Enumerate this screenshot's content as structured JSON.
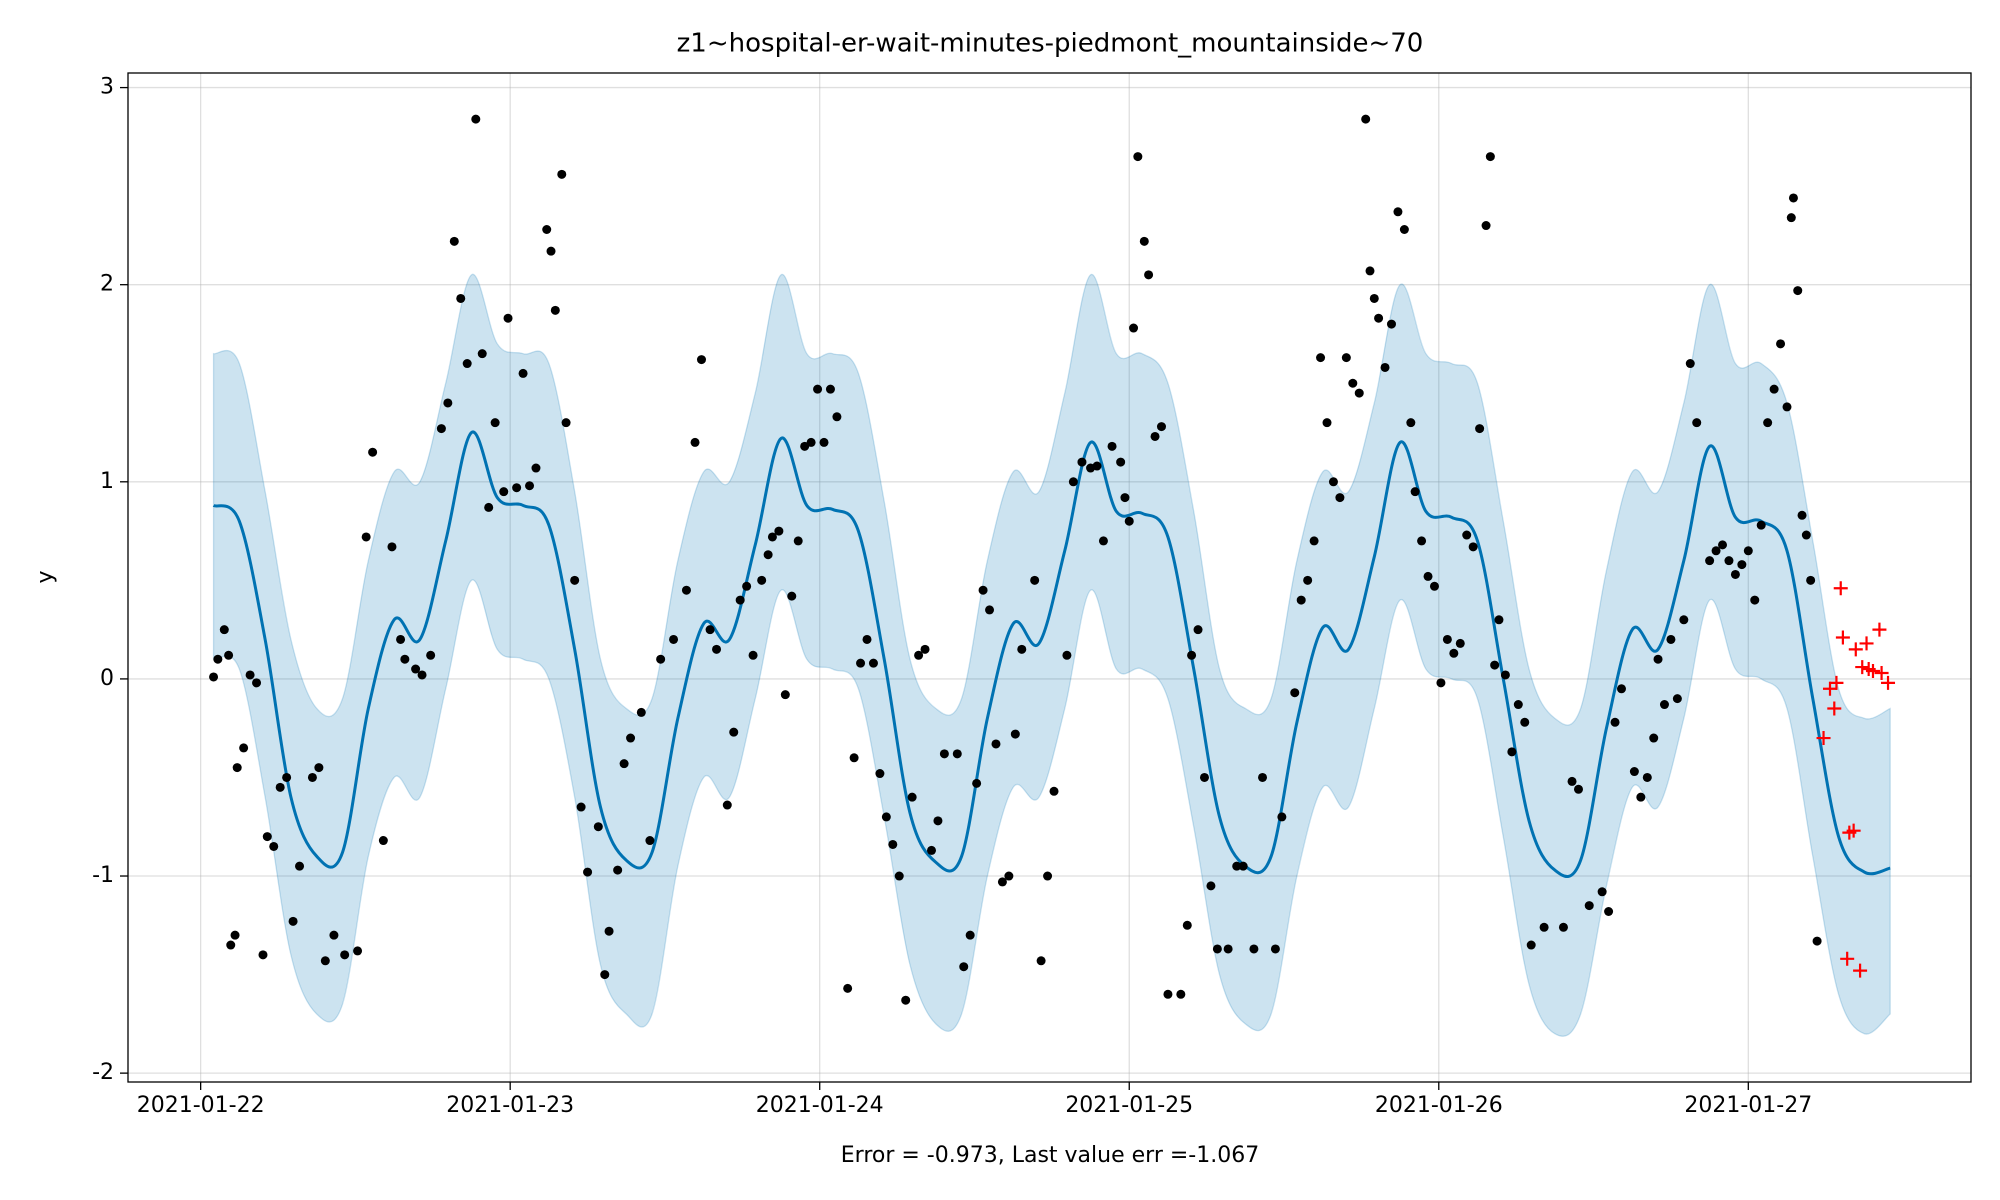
{
  "chart_data": {
    "type": "forecast",
    "title": "z1~hospital-er-wait-minutes-piedmont_mountainside~70",
    "xlabel": "Error = -0.973, Last value err =-1.067",
    "ylabel": "y",
    "grid": true,
    "xlim": [
      "2021-01-21T18:22",
      "2021-01-27T17:16"
    ],
    "xticks": [
      "2021-01-22",
      "2021-01-23",
      "2021-01-24",
      "2021-01-25",
      "2021-01-26",
      "2021-01-27"
    ],
    "ylim": [
      -2.045,
      3.074
    ],
    "yticks": [
      -2,
      -1,
      0,
      1,
      2,
      3
    ],
    "band": {
      "color": "#0072B2",
      "x": [
        "2021-01-22T01:00",
        "2021-01-22T03:00",
        "2021-01-22T05:00",
        "2021-01-22T07:00",
        "2021-01-22T09:00",
        "2021-01-22T11:00",
        "2021-01-22T13:00",
        "2021-01-22T15:00",
        "2021-01-22T17:00",
        "2021-01-22T19:00",
        "2021-01-22T21:00",
        "2021-01-22T23:00",
        "2021-01-23T01:00",
        "2021-01-23T03:00",
        "2021-01-23T05:00",
        "2021-01-23T07:00",
        "2021-01-23T09:00",
        "2021-01-23T11:00",
        "2021-01-23T13:00",
        "2021-01-23T15:00",
        "2021-01-23T17:00",
        "2021-01-23T19:00",
        "2021-01-23T21:00",
        "2021-01-23T23:00",
        "2021-01-24T01:00",
        "2021-01-24T03:00",
        "2021-01-24T05:00",
        "2021-01-24T07:00",
        "2021-01-24T09:00",
        "2021-01-24T11:00",
        "2021-01-24T13:00",
        "2021-01-24T15:00",
        "2021-01-24T17:00",
        "2021-01-24T19:00",
        "2021-01-24T21:00",
        "2021-01-24T23:00",
        "2021-01-25T01:00",
        "2021-01-25T03:00",
        "2021-01-25T05:00",
        "2021-01-25T07:00",
        "2021-01-25T09:00",
        "2021-01-25T11:00",
        "2021-01-25T13:00",
        "2021-01-25T15:00",
        "2021-01-25T17:00",
        "2021-01-25T19:00",
        "2021-01-25T21:00",
        "2021-01-25T23:00",
        "2021-01-26T01:00",
        "2021-01-26T03:00",
        "2021-01-26T05:00",
        "2021-01-26T07:00",
        "2021-01-26T09:00",
        "2021-01-26T11:00",
        "2021-01-26T13:00",
        "2021-01-26T15:00",
        "2021-01-26T17:00",
        "2021-01-26T19:00",
        "2021-01-26T21:00",
        "2021-01-26T23:00",
        "2021-01-27T01:00",
        "2021-01-27T03:00",
        "2021-01-27T05:00",
        "2021-01-27T07:00",
        "2021-01-27T09:00",
        "2021-01-27T11:00"
      ],
      "upper": [
        1.65,
        1.6,
        0.95,
        0.2,
        -0.15,
        -0.1,
        0.6,
        1.05,
        1.0,
        1.5,
        2.05,
        1.7,
        1.65,
        1.6,
        0.95,
        0.1,
        -0.15,
        -0.1,
        0.6,
        1.05,
        1.0,
        1.45,
        2.05,
        1.65,
        1.65,
        1.55,
        0.9,
        0.1,
        -0.15,
        -0.1,
        0.6,
        1.05,
        0.95,
        1.45,
        2.05,
        1.65,
        1.65,
        1.5,
        0.85,
        0.05,
        -0.15,
        -0.1,
        0.6,
        1.05,
        0.95,
        1.4,
        2.0,
        1.65,
        1.6,
        1.5,
        0.8,
        0.05,
        -0.2,
        -0.15,
        0.55,
        1.05,
        0.95,
        1.4,
        2.0,
        1.6,
        1.6,
        1.4,
        0.7,
        -0.05,
        -0.2,
        -0.15
      ],
      "lower": [
        0.1,
        0.05,
        -0.6,
        -1.4,
        -1.7,
        -1.65,
        -0.9,
        -0.5,
        -0.6,
        -0.05,
        0.5,
        0.15,
        0.1,
        0.0,
        -0.6,
        -1.45,
        -1.7,
        -1.7,
        -0.95,
        -0.5,
        -0.6,
        -0.1,
        0.45,
        0.1,
        0.05,
        -0.05,
        -0.7,
        -1.45,
        -1.75,
        -1.7,
        -1.0,
        -0.55,
        -0.6,
        -0.15,
        0.45,
        0.05,
        0.05,
        -0.1,
        -0.75,
        -1.5,
        -1.75,
        -1.7,
        -1.0,
        -0.55,
        -0.65,
        -0.15,
        0.4,
        0.05,
        0.0,
        -0.1,
        -0.8,
        -1.55,
        -1.8,
        -1.7,
        -1.05,
        -0.55,
        -0.65,
        -0.2,
        0.4,
        0.05,
        0.0,
        -0.15,
        -0.9,
        -1.6,
        -1.8,
        -1.7
      ]
    },
    "series": [
      {
        "marker": "line",
        "color": "#0072B2",
        "x": [
          "2021-01-22T01:00",
          "2021-01-22T03:00",
          "2021-01-22T05:00",
          "2021-01-22T07:00",
          "2021-01-22T09:00",
          "2021-01-22T11:00",
          "2021-01-22T13:00",
          "2021-01-22T15:00",
          "2021-01-22T17:00",
          "2021-01-22T19:00",
          "2021-01-22T21:00",
          "2021-01-22T23:00",
          "2021-01-23T01:00",
          "2021-01-23T03:00",
          "2021-01-23T05:00",
          "2021-01-23T07:00",
          "2021-01-23T09:00",
          "2021-01-23T11:00",
          "2021-01-23T13:00",
          "2021-01-23T15:00",
          "2021-01-23T17:00",
          "2021-01-23T19:00",
          "2021-01-23T21:00",
          "2021-01-23T23:00",
          "2021-01-24T01:00",
          "2021-01-24T03:00",
          "2021-01-24T05:00",
          "2021-01-24T07:00",
          "2021-01-24T09:00",
          "2021-01-24T11:00",
          "2021-01-24T13:00",
          "2021-01-24T15:00",
          "2021-01-24T17:00",
          "2021-01-24T19:00",
          "2021-01-24T21:00",
          "2021-01-24T23:00",
          "2021-01-25T01:00",
          "2021-01-25T03:00",
          "2021-01-25T05:00",
          "2021-01-25T07:00",
          "2021-01-25T09:00",
          "2021-01-25T11:00",
          "2021-01-25T13:00",
          "2021-01-25T15:00",
          "2021-01-25T17:00",
          "2021-01-25T19:00",
          "2021-01-25T21:00",
          "2021-01-25T23:00",
          "2021-01-26T01:00",
          "2021-01-26T03:00",
          "2021-01-26T05:00",
          "2021-01-26T07:00",
          "2021-01-26T09:00",
          "2021-01-26T11:00",
          "2021-01-26T13:00",
          "2021-01-26T15:00",
          "2021-01-26T17:00",
          "2021-01-26T19:00",
          "2021-01-26T21:00",
          "2021-01-26T23:00",
          "2021-01-27T01:00",
          "2021-01-27T03:00",
          "2021-01-27T05:00",
          "2021-01-27T07:00",
          "2021-01-27T09:00",
          "2021-01-27T11:00"
        ],
        "values": [
          0.88,
          0.8,
          0.2,
          -0.6,
          -0.9,
          -0.88,
          -0.15,
          0.3,
          0.2,
          0.7,
          1.25,
          0.92,
          0.88,
          0.78,
          0.15,
          -0.65,
          -0.92,
          -0.88,
          -0.2,
          0.28,
          0.2,
          0.68,
          1.22,
          0.88,
          0.86,
          0.75,
          0.1,
          -0.68,
          -0.93,
          -0.9,
          -0.2,
          0.28,
          0.18,
          0.65,
          1.2,
          0.85,
          0.84,
          0.72,
          0.05,
          -0.7,
          -0.95,
          -0.9,
          -0.22,
          0.26,
          0.15,
          0.62,
          1.2,
          0.85,
          0.82,
          0.7,
          0.0,
          -0.72,
          -0.97,
          -0.92,
          -0.25,
          0.25,
          0.15,
          0.6,
          1.18,
          0.82,
          0.8,
          0.65,
          -0.1,
          -0.8,
          -0.98,
          -0.96
        ]
      },
      {
        "marker": "dot",
        "color": "#000000",
        "x": [
          "2021-01-22T01:00",
          "2021-01-22T01:20",
          "2021-01-22T01:50",
          "2021-01-22T02:10",
          "2021-01-22T02:20",
          "2021-01-22T02:40",
          "2021-01-22T02:50",
          "2021-01-22T03:20",
          "2021-01-22T03:50",
          "2021-01-22T04:20",
          "2021-01-22T04:50",
          "2021-01-22T05:10",
          "2021-01-22T05:40",
          "2021-01-22T06:10",
          "2021-01-22T06:40",
          "2021-01-22T07:10",
          "2021-01-22T07:40",
          "2021-01-22T08:40",
          "2021-01-22T09:10",
          "2021-01-22T09:40",
          "2021-01-22T10:20",
          "2021-01-22T11:10",
          "2021-01-22T12:10",
          "2021-01-22T12:50",
          "2021-01-22T13:20",
          "2021-01-22T14:10",
          "2021-01-22T14:50",
          "2021-01-22T15:30",
          "2021-01-22T15:50",
          "2021-01-22T16:40",
          "2021-01-22T17:10",
          "2021-01-22T17:50",
          "2021-01-22T18:40",
          "2021-01-22T19:10",
          "2021-01-22T19:40",
          "2021-01-22T20:10",
          "2021-01-22T20:40",
          "2021-01-22T21:20",
          "2021-01-22T21:50",
          "2021-01-22T22:20",
          "2021-01-22T22:50",
          "2021-01-22T23:30",
          "2021-01-22T23:50",
          "2021-01-23T00:30",
          "2021-01-23T01:00",
          "2021-01-23T01:30",
          "2021-01-23T02:00",
          "2021-01-23T02:50",
          "2021-01-23T03:10",
          "2021-01-23T03:30",
          "2021-01-23T04:00",
          "2021-01-23T04:20",
          "2021-01-23T05:00",
          "2021-01-23T05:30",
          "2021-01-23T06:00",
          "2021-01-23T06:50",
          "2021-01-23T07:20",
          "2021-01-23T07:40",
          "2021-01-23T08:20",
          "2021-01-23T08:50",
          "2021-01-23T09:20",
          "2021-01-23T10:10",
          "2021-01-23T10:50",
          "2021-01-23T11:40",
          "2021-01-23T12:40",
          "2021-01-23T13:40",
          "2021-01-23T14:20",
          "2021-01-23T14:50",
          "2021-01-23T15:30",
          "2021-01-23T16:00",
          "2021-01-23T16:50",
          "2021-01-23T17:20",
          "2021-01-23T17:50",
          "2021-01-23T18:20",
          "2021-01-23T18:50",
          "2021-01-23T19:30",
          "2021-01-23T20:00",
          "2021-01-23T20:20",
          "2021-01-23T20:50",
          "2021-01-23T21:20",
          "2021-01-23T21:50",
          "2021-01-23T22:20",
          "2021-01-23T22:50",
          "2021-01-23T23:20",
          "2021-01-23T23:50",
          "2021-01-24T00:20",
          "2021-01-24T00:50",
          "2021-01-24T01:20",
          "2021-01-24T02:10",
          "2021-01-24T02:40",
          "2021-01-24T03:10",
          "2021-01-24T03:40",
          "2021-01-24T04:10",
          "2021-01-24T04:40",
          "2021-01-24T05:10",
          "2021-01-24T05:40",
          "2021-01-24T06:10",
          "2021-01-24T06:40",
          "2021-01-24T07:10",
          "2021-01-24T07:40",
          "2021-01-24T08:10",
          "2021-01-24T08:40",
          "2021-01-24T09:10",
          "2021-01-24T09:40",
          "2021-01-24T10:40",
          "2021-01-24T11:10",
          "2021-01-24T11:40",
          "2021-01-24T12:10",
          "2021-01-24T12:40",
          "2021-01-24T13:10",
          "2021-01-24T13:40",
          "2021-01-24T14:10",
          "2021-01-24T14:40",
          "2021-01-24T15:10",
          "2021-01-24T15:40",
          "2021-01-24T16:40",
          "2021-01-24T17:10",
          "2021-01-24T17:40",
          "2021-01-24T18:10",
          "2021-01-24T19:10",
          "2021-01-24T19:40",
          "2021-01-24T20:20",
          "2021-01-24T21:00",
          "2021-01-24T21:30",
          "2021-01-24T22:00",
          "2021-01-24T22:40",
          "2021-01-24T23:20",
          "2021-01-24T23:40",
          "2021-01-25T00:00",
          "2021-01-25T00:20",
          "2021-01-25T00:40",
          "2021-01-25T01:10",
          "2021-01-25T01:30",
          "2021-01-25T02:00",
          "2021-01-25T02:30",
          "2021-01-25T03:00",
          "2021-01-25T04:00",
          "2021-01-25T04:30",
          "2021-01-25T04:50",
          "2021-01-25T05:20",
          "2021-01-25T05:50",
          "2021-01-25T06:20",
          "2021-01-25T06:50",
          "2021-01-25T07:40",
          "2021-01-25T08:20",
          "2021-01-25T08:50",
          "2021-01-25T09:40",
          "2021-01-25T10:20",
          "2021-01-25T11:20",
          "2021-01-25T11:50",
          "2021-01-25T12:50",
          "2021-01-25T13:20",
          "2021-01-25T13:50",
          "2021-01-25T14:20",
          "2021-01-25T14:50",
          "2021-01-25T15:20",
          "2021-01-25T15:50",
          "2021-01-25T16:20",
          "2021-01-25T16:50",
          "2021-01-25T17:20",
          "2021-01-25T17:50",
          "2021-01-25T18:20",
          "2021-01-25T18:40",
          "2021-01-25T19:00",
          "2021-01-25T19:20",
          "2021-01-25T19:50",
          "2021-01-25T20:20",
          "2021-01-25T20:50",
          "2021-01-25T21:20",
          "2021-01-25T21:50",
          "2021-01-25T22:10",
          "2021-01-25T22:40",
          "2021-01-25T23:10",
          "2021-01-25T23:40",
          "2021-01-26T00:10",
          "2021-01-26T00:40",
          "2021-01-26T01:10",
          "2021-01-26T01:40",
          "2021-01-26T02:10",
          "2021-01-26T02:40",
          "2021-01-26T03:10",
          "2021-01-26T03:40",
          "2021-01-26T04:00",
          "2021-01-26T04:20",
          "2021-01-26T04:40",
          "2021-01-26T05:10",
          "2021-01-26T05:40",
          "2021-01-26T06:10",
          "2021-01-26T06:40",
          "2021-01-26T07:10",
          "2021-01-26T08:10",
          "2021-01-26T09:40",
          "2021-01-26T10:20",
          "2021-01-26T10:50",
          "2021-01-26T11:40",
          "2021-01-26T12:40",
          "2021-01-26T13:10",
          "2021-01-26T13:40",
          "2021-01-26T14:10",
          "2021-01-26T15:10",
          "2021-01-26T15:40",
          "2021-01-26T16:10",
          "2021-01-26T16:40",
          "2021-01-26T17:00",
          "2021-01-26T17:30",
          "2021-01-26T18:00",
          "2021-01-26T18:30",
          "2021-01-26T19:00",
          "2021-01-26T19:30",
          "2021-01-26T20:00",
          "2021-01-26T21:00",
          "2021-01-26T21:30",
          "2021-01-26T22:00",
          "2021-01-26T22:30",
          "2021-01-26T23:00",
          "2021-01-26T23:30",
          "2021-01-27T00:00",
          "2021-01-27T00:30",
          "2021-01-27T01:00",
          "2021-01-27T01:30",
          "2021-01-27T02:00",
          "2021-01-27T02:30",
          "2021-01-27T03:00",
          "2021-01-27T03:20",
          "2021-01-27T03:30",
          "2021-01-27T03:50",
          "2021-01-27T04:10",
          "2021-01-27T04:30",
          "2021-01-27T04:50",
          "2021-01-27T05:20"
        ],
        "values": [
          0.01,
          0.1,
          0.25,
          0.12,
          -1.35,
          -1.3,
          -0.45,
          -0.35,
          0.02,
          -0.02,
          -1.4,
          -0.8,
          -0.85,
          -0.55,
          -0.5,
          -1.23,
          -0.95,
          -0.5,
          -0.45,
          -1.43,
          -1.3,
          -1.4,
          -1.38,
          0.72,
          1.15,
          -0.82,
          0.67,
          0.2,
          0.1,
          0.05,
          0.02,
          0.12,
          1.27,
          1.4,
          2.22,
          1.93,
          1.6,
          2.84,
          1.65,
          0.87,
          1.3,
          0.95,
          1.83,
          0.97,
          1.55,
          0.98,
          1.07,
          2.28,
          2.17,
          1.87,
          2.56,
          1.3,
          0.5,
          -0.65,
          -0.98,
          -0.75,
          -1.5,
          -1.28,
          -0.97,
          -0.43,
          -0.3,
          -0.17,
          -0.82,
          0.1,
          0.2,
          0.45,
          1.2,
          1.62,
          0.25,
          0.15,
          -0.64,
          -0.27,
          0.4,
          0.47,
          0.12,
          0.5,
          0.63,
          0.72,
          0.75,
          -0.08,
          0.42,
          0.7,
          1.18,
          1.2,
          1.47,
          1.2,
          1.47,
          1.33,
          -1.57,
          -0.4,
          0.08,
          0.2,
          0.08,
          -0.48,
          -0.7,
          -0.84,
          -1.0,
          -1.63,
          -0.6,
          0.12,
          0.15,
          -0.87,
          -0.72,
          -0.38,
          -0.38,
          -1.46,
          -1.3,
          -0.53,
          0.45,
          0.35,
          -0.33,
          -1.03,
          -1.0,
          -0.28,
          0.15,
          0.5,
          -1.43,
          -1.0,
          -0.57,
          0.12,
          1.0,
          1.1,
          1.07,
          1.08,
          0.7,
          1.18,
          1.1,
          0.92,
          0.8,
          1.78,
          2.65,
          2.22,
          2.05,
          1.23,
          1.28,
          -1.6,
          -1.6,
          -1.25,
          0.12,
          0.25,
          -0.5,
          -1.05,
          -1.37,
          -1.37,
          -0.95,
          -0.95,
          -1.37,
          -0.5,
          -1.37,
          -0.7,
          -0.07,
          0.4,
          0.5,
          0.7,
          1.63,
          1.3,
          1.0,
          0.92,
          1.63,
          1.5,
          1.45,
          2.84,
          2.07,
          1.93,
          1.83,
          1.58,
          1.8,
          2.37,
          2.28,
          1.3,
          0.95,
          0.7,
          0.52,
          0.47,
          -0.02,
          0.2,
          0.13,
          0.18,
          0.73,
          0.67,
          1.27,
          2.3,
          2.65,
          0.07,
          0.3,
          0.02,
          -0.37,
          -0.13,
          -0.22,
          -1.35,
          -1.26,
          -1.26,
          -0.52,
          -0.56,
          -1.15,
          -1.08,
          -1.18,
          -0.22,
          -0.05,
          -0.47,
          -0.6,
          -0.5,
          -0.3,
          0.1,
          -0.13,
          0.2,
          -0.1,
          0.3,
          1.6,
          1.3,
          0.6,
          0.65,
          0.68,
          0.6,
          0.53,
          0.58,
          0.65,
          0.4,
          0.78,
          1.3,
          1.47,
          1.7,
          1.38,
          2.34,
          2.44,
          1.97,
          0.83,
          0.73,
          0.5,
          -1.33
        ]
      },
      {
        "marker": "plus",
        "color": "#ff0000",
        "x": [
          "2021-01-27T05:50",
          "2021-01-27T06:20",
          "2021-01-27T06:40",
          "2021-01-27T06:50",
          "2021-01-27T07:10",
          "2021-01-27T07:20",
          "2021-01-27T07:40",
          "2021-01-27T07:50",
          "2021-01-27T08:10",
          "2021-01-27T08:20",
          "2021-01-27T08:40",
          "2021-01-27T08:50",
          "2021-01-27T09:10",
          "2021-01-27T09:20",
          "2021-01-27T09:40",
          "2021-01-27T10:10",
          "2021-01-27T10:20",
          "2021-01-27T10:50"
        ],
        "values": [
          -0.3,
          -0.05,
          -0.15,
          -0.02,
          0.46,
          0.21,
          -1.42,
          -0.78,
          -0.77,
          0.15,
          -1.48,
          0.06,
          0.18,
          0.05,
          0.04,
          0.25,
          0.03,
          -0.02
        ]
      }
    ]
  }
}
